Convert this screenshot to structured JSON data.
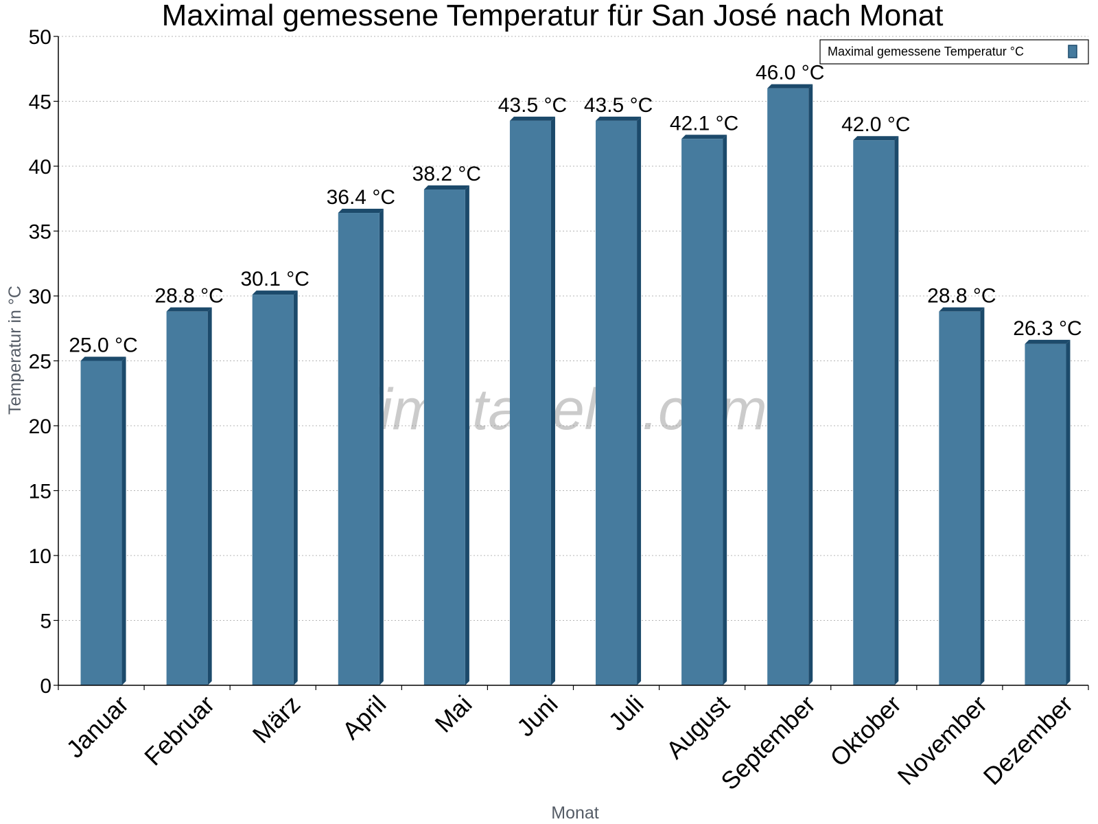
{
  "chart_data": {
    "type": "bar",
    "title": "Maximal gemessene Temperatur für San José nach Monat",
    "xlabel": "Monat",
    "ylabel": "Temperatur in °C",
    "ylim": [
      0,
      50
    ],
    "yticks": [
      0,
      5,
      10,
      15,
      20,
      25,
      30,
      35,
      40,
      45,
      50
    ],
    "categories": [
      "Januar",
      "Februar",
      "März",
      "April",
      "Mai",
      "Juni",
      "Juli",
      "August",
      "September",
      "Oktober",
      "November",
      "Dezember"
    ],
    "series": [
      {
        "name": "Maximal gemessene Temperatur °C",
        "values": [
          25.0,
          28.8,
          30.1,
          36.4,
          38.2,
          43.5,
          43.5,
          42.1,
          46.0,
          42.0,
          28.8,
          26.3
        ],
        "labels": [
          "25.0 °C",
          "28.8 °C",
          "30.1 °C",
          "36.4 °C",
          "38.2 °C",
          "43.5 °C",
          "43.5 °C",
          "42.1 °C",
          "46.0 °C",
          "42.0 °C",
          "28.8 °C",
          "26.3 °C"
        ]
      }
    ],
    "grid": true,
    "legend_position": "top-right",
    "colors": {
      "bar": "#467b9e",
      "bar_shade": "#1c4a6b",
      "watermark": "#8c8c8c"
    },
    "watermark": "klimatabelle.com"
  }
}
